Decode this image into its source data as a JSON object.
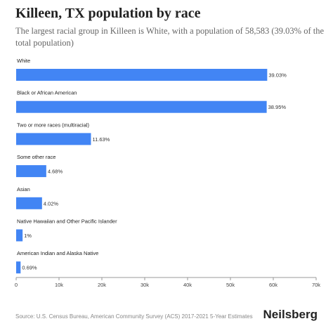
{
  "header": {
    "title": "Killeen, TX population by race",
    "subtitle": "The largest racial group in Killeen is White, with a population of 58,583 (39.03% of the total population)"
  },
  "footer": {
    "source": "Source: U.S. Census Bureau, American Community Survey (ACS) 2017-2021 5-Year Estimates",
    "brand": "Neilsberg"
  },
  "colors": {
    "bar": "#4285f4",
    "axis": "#999999",
    "text": "#222222"
  },
  "chart_data": {
    "type": "bar",
    "orientation": "horizontal",
    "categories": [
      "White",
      "Black or African American",
      "Two or more races (multiracial)",
      "Some other race",
      "Asian",
      "Native Hawaiian and Other Pacific Islander",
      "American Indian and Alaska Native"
    ],
    "values": [
      58583,
      58460,
      17456,
      7024,
      6034,
      1500,
      1036
    ],
    "labels": [
      "39.03%",
      "38.95%",
      "11.63%",
      "4.68%",
      "4.02%",
      "1%",
      "0.69%"
    ],
    "xlim": [
      0,
      70000
    ],
    "xticks": [
      0,
      10000,
      20000,
      30000,
      40000,
      50000,
      60000,
      70000
    ],
    "xtick_labels": [
      "0",
      "10k",
      "20k",
      "30k",
      "40k",
      "50k",
      "60k",
      "70k"
    ],
    "grid": false,
    "legend": "none"
  }
}
